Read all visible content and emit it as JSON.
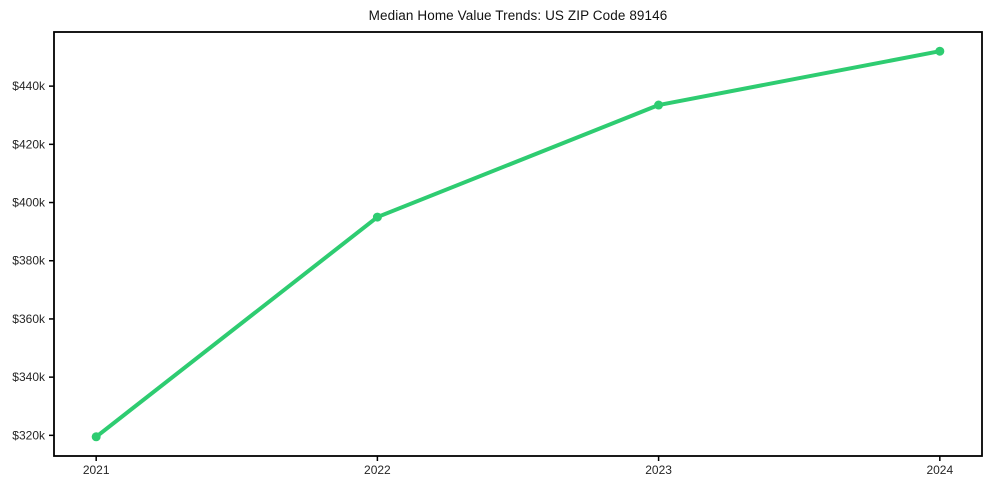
{
  "title": "Median Home Value Trends: US ZIP Code 89146",
  "colors": {
    "line": "#2ecc71",
    "axis": "#000000",
    "tick_label": "#262626",
    "title_text": "#111111",
    "background": "#ffffff"
  },
  "chart_data": {
    "type": "line",
    "title": "Median Home Value Trends: US ZIP Code 89146",
    "xlabel": "",
    "ylabel": "",
    "x": [
      2021,
      2022,
      2023,
      2024
    ],
    "series": [
      {
        "name": "Median Home Value",
        "values": [
          319500,
          395000,
          433500,
          452000
        ]
      }
    ],
    "xticks": {
      "values": [
        2021,
        2022,
        2023,
        2024
      ],
      "labels": [
        "2021",
        "2022",
        "2023",
        "2024"
      ]
    },
    "yticks": {
      "values": [
        320000,
        340000,
        360000,
        380000,
        400000,
        420000,
        440000
      ],
      "labels": [
        "$320k",
        "$340k",
        "$360k",
        "$380k",
        "$400k",
        "$420k",
        "$440k"
      ]
    },
    "xlim": [
      2020.85,
      2024.15
    ],
    "ylim": [
      312900,
      458600
    ],
    "grid": false,
    "legend": false,
    "marker": "circle",
    "marker_radius": 4.5,
    "line_width": 4
  }
}
